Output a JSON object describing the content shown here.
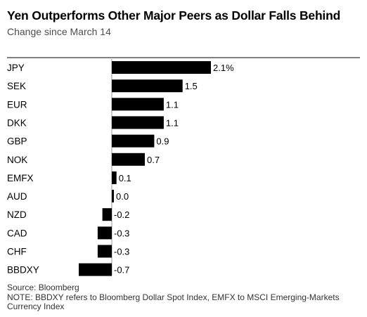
{
  "title": "Yen Outperforms Other Major Peers as Dollar Falls Behind",
  "subtitle": "Change since March 14",
  "footer": {
    "source": "Source: Bloomberg",
    "note": "NOTE: BBDXY refers to Bloomberg Dollar Spot Index, EMFX to MSCI Emerging-Markets Currency Index"
  },
  "colors": {
    "bar": "#000000",
    "divider": "#000000",
    "zero_line": "#9a9a9a"
  },
  "chart_data": {
    "type": "bar",
    "orientation": "horizontal",
    "categories": [
      "JPY",
      "SEK",
      "EUR",
      "DKK",
      "GBP",
      "NOK",
      "EMFX",
      "AUD",
      "NZD",
      "CAD",
      "CHF",
      "BBDXY"
    ],
    "values": [
      2.1,
      1.5,
      1.1,
      1.1,
      0.9,
      0.7,
      0.1,
      0.0,
      -0.2,
      -0.3,
      -0.3,
      -0.7
    ],
    "data_labels": [
      "2.1%",
      "1.5",
      "1.1",
      "1.1",
      "0.9",
      "0.7",
      "0.1",
      "0.0",
      "-0.2",
      "-0.3",
      "-0.3",
      "-0.7"
    ],
    "xlim": [
      -0.7,
      2.1
    ],
    "grid": false,
    "legend": "none"
  }
}
